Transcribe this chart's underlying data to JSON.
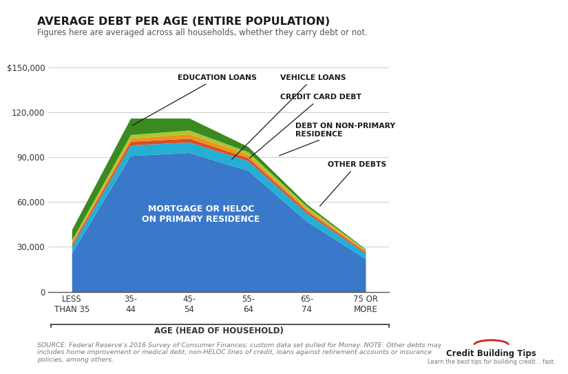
{
  "title": "AVERAGE DEBT PER AGE (ENTIRE POPULATION)",
  "subtitle": "Figures here are averaged across all households, whether they carry debt or not.",
  "xlabel": "AGE (HEAD OF HOUSEHOLD)",
  "categories": [
    "LESS\nTHAN 35",
    "35-\n44",
    "45-\n54",
    "55-\n64",
    "65-\n74",
    "75 OR\nMORE"
  ],
  "mortgage": [
    26000,
    91000,
    93000,
    81000,
    47000,
    22000
  ],
  "vehicle": [
    4500,
    7000,
    7000,
    6500,
    5500,
    3500
  ],
  "credit_card": [
    1500,
    2500,
    2500,
    2000,
    1500,
    1000
  ],
  "non_primary": [
    1000,
    2000,
    3000,
    2000,
    1500,
    800
  ],
  "other": [
    1500,
    2500,
    2500,
    2000,
    1500,
    700
  ],
  "education": [
    7000,
    11000,
    8000,
    3500,
    1500,
    500
  ],
  "colors": {
    "mortgage": "#3a78c9",
    "vehicle": "#25afd4",
    "credit_card": "#d94f26",
    "non_primary": "#f0921e",
    "other": "#a8c832",
    "education": "#3a8a20"
  },
  "ylim": [
    0,
    150000
  ],
  "yticks": [
    0,
    30000,
    60000,
    90000,
    120000,
    150000
  ],
  "ytick_labels": [
    "0",
    "30,000",
    "60,000",
    "90,000",
    "120,000",
    "$150,000"
  ],
  "source_text": "SOURCE: Federal Reserve's 2016 Survey of Consumer Finances; custom data set pulled for Money. NOTE: Other debts may\nincludes home improvement or medical debt, non-HELOC lines of credit, loans against retirement accounts or insurance\npolicies, among others.",
  "bg_color": "#ffffff",
  "grid_color": "#cccccc"
}
